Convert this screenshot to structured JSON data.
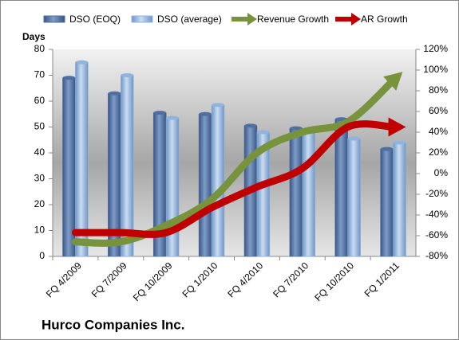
{
  "chart_data": {
    "type": "bar_line",
    "title": "Hurco Companies Inc.",
    "y_label": "Days",
    "categories": [
      "FQ 4/2009",
      "FQ 7/2009",
      "FQ 10/2009",
      "FQ 1/2010",
      "FQ 4/2010",
      "FQ 7/2010",
      "FQ 10/2010",
      "FQ 1/2011"
    ],
    "series": [
      {
        "name": "DSO (EOQ)",
        "type": "bar",
        "color": "#4f6fa0",
        "values": [
          69,
          63,
          55.5,
          55,
          50.5,
          49.5,
          53,
          41.5
        ]
      },
      {
        "name": "DSO (average)",
        "type": "bar",
        "color": "#8fb4de",
        "values": [
          75,
          70,
          53.5,
          58.5,
          48,
          49,
          45.5,
          44
        ]
      },
      {
        "name": "Revenue Growth",
        "type": "line",
        "axis": "y2",
        "color": "#77933c",
        "values": [
          -66,
          -66,
          -50,
          -25,
          20,
          40,
          50,
          90
        ]
      },
      {
        "name": "AR Growth",
        "type": "line",
        "axis": "y2",
        "color": "#c00000",
        "values": [
          -57,
          -57,
          -57,
          -33,
          -13,
          5,
          45,
          45
        ]
      }
    ],
    "ylim": [
      0,
      80
    ],
    "yticks": [
      0,
      10,
      20,
      30,
      40,
      50,
      60,
      70,
      80
    ],
    "y2lim": [
      -80,
      120
    ],
    "y2ticks": [
      {
        "value": -80,
        "label": "-80%"
      },
      {
        "value": -60,
        "label": "-60%"
      },
      {
        "value": -40,
        "label": "-40%"
      },
      {
        "value": -20,
        "label": "-20%"
      },
      {
        "value": 0,
        "label": "0%"
      },
      {
        "value": 20,
        "label": "20%"
      },
      {
        "value": 40,
        "label": "40%"
      },
      {
        "value": 60,
        "label": "60%"
      },
      {
        "value": 80,
        "label": "80%"
      },
      {
        "value": 100,
        "label": "100%"
      },
      {
        "value": 120,
        "label": "120%"
      }
    ]
  }
}
